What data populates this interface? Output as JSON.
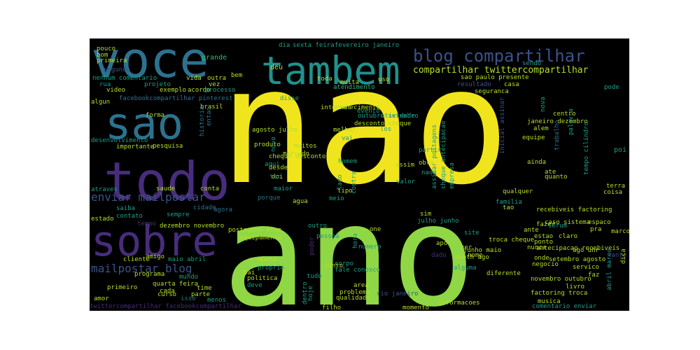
{
  "colors": {
    "background": "#000000",
    "page": "#ffffff",
    "yellow": "#f0e51c",
    "green": "#8fd744",
    "lightgreen": "#b5de2b",
    "teal": "#21918c",
    "blue": "#2c728e",
    "indigo": "#3b528b",
    "purple": "#472d7b",
    "darkpurple": "#440154",
    "mint": "#35b779",
    "sea": "#1f9e89"
  },
  "words": [
    {
      "text": "nao",
      "color": "yellow"
    },
    {
      "text": "ano",
      "color": "green"
    },
    {
      "text": "voce",
      "color": "blue"
    },
    {
      "text": "tambem",
      "color": "teal"
    },
    {
      "text": "sao",
      "color": "blue"
    },
    {
      "text": "todo",
      "color": "purple"
    },
    {
      "text": "sobre",
      "color": "purple"
    },
    {
      "text": "blog compartilhar",
      "color": "indigo"
    },
    {
      "text": "compartilhar twittercompartilhar",
      "color": "lightgreen"
    },
    {
      "text": "enviar mailpostar",
      "color": "indigo"
    },
    {
      "text": "mailpostar blog",
      "color": "indigo"
    },
    {
      "text": "pouco",
      "color": "lightgreen"
    },
    {
      "text": "bom",
      "color": "lightgreen"
    },
    {
      "text": "primeira",
      "color": "lightgreen"
    },
    {
      "text": "segundo",
      "color": "indigo"
    },
    {
      "text": "nenhum comentario",
      "color": "sea"
    },
    {
      "text": "rua",
      "color": "sea"
    },
    {
      "text": "video",
      "color": "lightgreen"
    },
    {
      "text": "algun",
      "color": "lightgreen"
    },
    {
      "text": "projeto",
      "color": "sea"
    },
    {
      "text": "exemplo",
      "color": "lightgreen"
    },
    {
      "text": "acordo",
      "color": "lightgreen"
    },
    {
      "text": "processo",
      "color": "sea"
    },
    {
      "text": "vida",
      "color": "lightgreen"
    },
    {
      "text": "outra",
      "color": "lightgreen"
    },
    {
      "text": "vez",
      "color": "lightgreen"
    },
    {
      "text": "grande",
      "color": "mint"
    },
    {
      "text": "bem",
      "color": "lightgreen"
    },
    {
      "text": "deu",
      "color": "lightgreen"
    },
    {
      "text": "toda",
      "color": "lightgreen"
    },
    {
      "text": "muita",
      "color": "lightgreen"
    },
    {
      "text": "atendimento",
      "color": "mint"
    },
    {
      "text": "dia",
      "color": "sea"
    },
    {
      "text": "sexta feira",
      "color": "sea"
    },
    {
      "text": "fevereiro janeiro",
      "color": "sea"
    },
    {
      "text": "sendo",
      "color": "sea"
    },
    {
      "text": "casa",
      "color": "lightgreen"
    },
    {
      "text": "seguranca",
      "color": "lightgreen"
    },
    {
      "text": "sao paulo presente",
      "color": "lightgreen"
    },
    {
      "text": "resultado",
      "color": "indigo"
    },
    {
      "text": "pode",
      "color": "sea"
    },
    {
      "text": "pinterest marcadores",
      "color": "sea"
    },
    {
      "text": "facebookcompartilhar pinterest",
      "color": "blue"
    },
    {
      "text": "brasil",
      "color": "lightgreen"
    },
    {
      "text": "forma",
      "color": "lightgreen"
    },
    {
      "text": "historia",
      "color": "blue"
    },
    {
      "text": "entao",
      "color": "blue"
    },
    {
      "text": "disse",
      "color": "sea"
    },
    {
      "text": "internet",
      "color": "lightgreen"
    },
    {
      "text": "conhecimento",
      "color": "lightgreen"
    },
    {
      "text": "uso",
      "color": "lightgreen"
    },
    {
      "text": "atividade",
      "color": "sea"
    },
    {
      "text": "evento",
      "color": "sea"
    },
    {
      "text": "outubro setembro",
      "color": "sea"
    },
    {
      "text": "inicial assinar",
      "color": "indigo"
    },
    {
      "text": "nova",
      "color": "sea"
    },
    {
      "text": "centro",
      "color": "lightgreen"
    },
    {
      "text": "janeiro dezembro",
      "color": "lightgreen"
    },
    {
      "text": "alem",
      "color": "lightgreen"
    },
    {
      "text": "equipe",
      "color": "lightgreen"
    },
    {
      "text": "palavra",
      "color": "sea"
    },
    {
      "text": "trabalho",
      "color": "blue"
    },
    {
      "text": "tempo cilindro",
      "color": "sea"
    },
    {
      "text": "poi",
      "color": "sea"
    },
    {
      "text": "desenvolvimento",
      "color": "sea"
    },
    {
      "text": "importante",
      "color": "lightgreen"
    },
    {
      "text": "pesquisa",
      "color": "lightgreen"
    },
    {
      "text": "agosto julho",
      "color": "lightgreen"
    },
    {
      "text": "produto",
      "color": "lightgreen"
    },
    {
      "text": "desconto cheque",
      "color": "lightgreen"
    },
    {
      "text": "melhor",
      "color": "lightgreen"
    },
    {
      "text": "mercado",
      "color": "lightgreen"
    },
    {
      "text": "muitos",
      "color": "lightgreen"
    },
    {
      "text": "cheque desconto",
      "color": "lightgreen"
    },
    {
      "text": "desde",
      "color": "lightgreen"
    },
    {
      "text": "doi",
      "color": "lightgreen"
    },
    {
      "text": "aqui",
      "color": "sea"
    },
    {
      "text": "novo",
      "color": "sea"
    },
    {
      "text": "vai",
      "color": "sea"
    },
    {
      "text": "los",
      "color": "sea"
    },
    {
      "text": "homem",
      "color": "sea"
    },
    {
      "text": "lado",
      "color": "sea"
    },
    {
      "text": "contra",
      "color": "sea"
    },
    {
      "text": "assinar postagens",
      "color": "sea"
    },
    {
      "text": "cheque antecipacao",
      "color": "sea"
    },
    {
      "text": "partir",
      "color": "sea"
    },
    {
      "text": "assim",
      "color": "lightgreen"
    },
    {
      "text": "obra",
      "color": "lightgreen"
    },
    {
      "text": "nada",
      "color": "sea"
    },
    {
      "text": "valor",
      "color": "sea"
    },
    {
      "text": "ainda",
      "color": "lightgreen"
    },
    {
      "text": "ate",
      "color": "lightgreen"
    },
    {
      "text": "quanto",
      "color": "lightgreen"
    },
    {
      "text": "terra",
      "color": "lightgreen"
    },
    {
      "text": "coisa",
      "color": "lightgreen"
    },
    {
      "text": "atraves",
      "color": "sea"
    },
    {
      "text": "saude",
      "color": "lightgreen"
    },
    {
      "text": "conta",
      "color": "lightgreen"
    },
    {
      "text": "ter",
      "color": "blue"
    },
    {
      "text": "maior",
      "color": "sea"
    },
    {
      "text": "porque",
      "color": "blue"
    },
    {
      "text": "tipo",
      "color": "lightgreen"
    },
    {
      "text": "empresa",
      "color": "sea"
    },
    {
      "text": "qualquer",
      "color": "lightgreen"
    },
    {
      "text": "saiba",
      "color": "sea"
    },
    {
      "text": "contato",
      "color": "sea"
    },
    {
      "text": "sempre",
      "color": "sea"
    },
    {
      "text": "cidade",
      "color": "blue"
    },
    {
      "text": "agora",
      "color": "blue"
    },
    {
      "text": "agua",
      "color": "lightgreen"
    },
    {
      "text": "meio",
      "color": "sea"
    },
    {
      "text": "sim",
      "color": "lightgreen"
    },
    {
      "text": "julho junho",
      "color": "sea"
    },
    {
      "text": "familia",
      "color": "sea"
    },
    {
      "text": "tao",
      "color": "lightgreen"
    },
    {
      "text": "recebiveis factoring",
      "color": "lightgreen"
    },
    {
      "text": "caso sistema",
      "color": "lightgreen"
    },
    {
      "text": "espaco",
      "color": "lightgreen"
    },
    {
      "text": "estado",
      "color": "lightgreen"
    },
    {
      "text": "tempo",
      "color": "purple"
    },
    {
      "text": "dezembro novembro",
      "color": "lightgreen"
    },
    {
      "text": "postagens atom",
      "color": "lightgreen"
    },
    {
      "text": "equipamento",
      "color": "lightgreen"
    },
    {
      "text": "outro",
      "color": "sea"
    },
    {
      "text": "one",
      "color": "lightgreen"
    },
    {
      "text": "site",
      "color": "sea"
    },
    {
      "text": "ante",
      "color": "lightgreen"
    },
    {
      "text": "fazer",
      "color": "lightgreen"
    },
    {
      "text": "serum",
      "color": "sea"
    },
    {
      "text": "marco fevereiro",
      "color": "lightgreen"
    },
    {
      "text": "pra",
      "color": "lightgreen"
    },
    {
      "text": "claro",
      "color": "lightgreen"
    },
    {
      "text": "estao",
      "color": "lightgreen"
    },
    {
      "text": "ponto",
      "color": "lightgreen"
    },
    {
      "text": "antecipacao recebiveis",
      "color": "lightgreen"
    },
    {
      "text": "pessoa",
      "color": "sea"
    },
    {
      "text": "hora",
      "color": "sea"
    },
    {
      "text": "troca cheque",
      "color": "lightgreen"
    },
    {
      "text": "apo",
      "color": "lightgreen"
    },
    {
      "text": "ver",
      "color": "lightgreen"
    },
    {
      "text": "ago uhr",
      "color": "lightgreen"
    },
    {
      "text": "tanto",
      "color": "indigo"
    },
    {
      "text": "cliente",
      "color": "lightgreen"
    },
    {
      "text": "amigo",
      "color": "lightgreen"
    },
    {
      "text": "maio abril",
      "color": "sea"
    },
    {
      "text": "apena",
      "color": "lightgreen"
    },
    {
      "text": "poder",
      "color": "purple"
    },
    {
      "text": "numero",
      "color": "sea"
    },
    {
      "text": "dado",
      "color": "purple"
    },
    {
      "text": "month ago",
      "color": "lightgreen"
    },
    {
      "text": "onde",
      "color": "lightgreen"
    },
    {
      "text": "setembro agosto",
      "color": "lightgreen"
    },
    {
      "text": "negocio",
      "color": "lightgreen"
    },
    {
      "text": "servico",
      "color": "lightgreen"
    },
    {
      "text": "dica",
      "color": "lightgreen"
    },
    {
      "text": "programa",
      "color": "lightgreen"
    },
    {
      "text": "mundo",
      "color": "sea"
    },
    {
      "text": "proprio",
      "color": "sea"
    },
    {
      "text": "pai",
      "color": "lightgreen"
    },
    {
      "text": "politica",
      "color": "lightgreen"
    },
    {
      "text": "junto",
      "color": "lightgreen"
    },
    {
      "text": "corpo",
      "color": "sea"
    },
    {
      "text": "fale conosco",
      "color": "sea"
    },
    {
      "text": "nome",
      "color": "lightgreen"
    },
    {
      "text": "alguma",
      "color": "sea"
    },
    {
      "text": "diferente",
      "color": "lightgreen"
    },
    {
      "text": "faz",
      "color": "lightgreen"
    },
    {
      "text": "quarta feira",
      "color": "lightgreen"
    },
    {
      "text": "primeiro",
      "color": "lightgreen"
    },
    {
      "text": "cada",
      "color": "lightgreen"
    },
    {
      "text": "curso",
      "color": "lightgreen"
    },
    {
      "text": "time",
      "color": "lightgreen"
    },
    {
      "text": "parte",
      "color": "lightgreen"
    },
    {
      "text": "deve",
      "color": "sea"
    },
    {
      "text": "tudo",
      "color": "sea"
    },
    {
      "text": "area",
      "color": "lightgreen"
    },
    {
      "text": "problema",
      "color": "lightgreen"
    },
    {
      "text": "qualidade",
      "color": "lightgreen"
    },
    {
      "text": "novembro outubro",
      "color": "lightgreen"
    },
    {
      "text": "livro",
      "color": "lightgreen"
    },
    {
      "text": "factoring troca",
      "color": "lightgreen"
    },
    {
      "text": "abril marco",
      "color": "sea"
    },
    {
      "text": "amor",
      "color": "lightgreen"
    },
    {
      "text": "isso",
      "color": "blue"
    },
    {
      "text": "menos",
      "color": "sea"
    },
    {
      "text": "twittercompartilhar facebookcompartilhar",
      "color": "purple"
    },
    {
      "text": "hoje",
      "color": "sea"
    },
    {
      "text": "dentro",
      "color": "sea"
    },
    {
      "text": "filho",
      "color": "lightgreen"
    },
    {
      "text": "rio janeiro",
      "color": "indigo"
    },
    {
      "text": "momento",
      "color": "lightgreen"
    },
    {
      "text": "informacoes",
      "color": "lightgreen"
    },
    {
      "text": "musica",
      "color": "lightgreen"
    },
    {
      "text": "comentario enviar",
      "color": "sea"
    },
    {
      "text": "junho maio",
      "color": "lightgreen"
    },
    {
      "text": "nunca",
      "color": "lightgreen"
    },
    {
      "text": "assinar",
      "color": "indigo"
    }
  ]
}
